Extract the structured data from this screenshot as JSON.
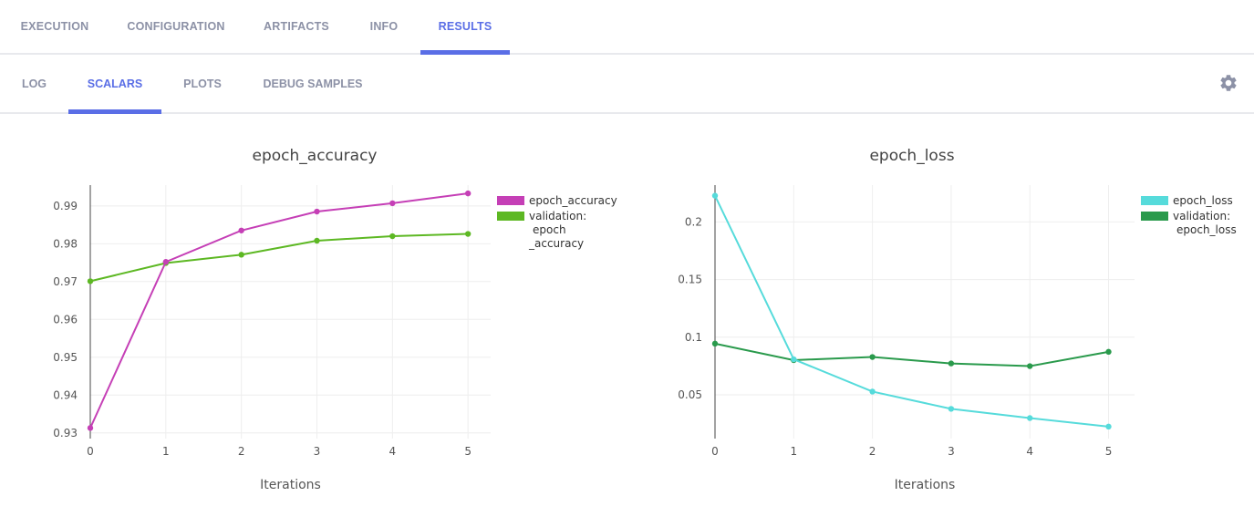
{
  "top_tabs": [
    {
      "label": "EXECUTION",
      "active": false
    },
    {
      "label": "CONFIGURATION",
      "active": false
    },
    {
      "label": "ARTIFACTS",
      "active": false
    },
    {
      "label": "INFO",
      "active": false
    },
    {
      "label": "RESULTS",
      "active": true
    }
  ],
  "sub_tabs": [
    {
      "label": "LOG",
      "active": false
    },
    {
      "label": "SCALARS",
      "active": true
    },
    {
      "label": "PLOTS",
      "active": false
    },
    {
      "label": "DEBUG SAMPLES",
      "active": false
    }
  ],
  "settings_icon": "gear-icon",
  "colors": {
    "accent": "#5a6ee6",
    "tab_inactive": "#8c91a6"
  },
  "chart_data": [
    {
      "type": "line",
      "title": "epoch_accuracy",
      "xlabel": "Iterations",
      "ylabel": "",
      "x": [
        0,
        1,
        2,
        3,
        4,
        5
      ],
      "xlim": [
        0,
        5.3
      ],
      "ylim": [
        0.9285,
        0.9955
      ],
      "yticks": [
        0.93,
        0.94,
        0.95,
        0.96,
        0.97,
        0.98,
        0.99
      ],
      "ytick_labels": [
        "0.93",
        "0.94",
        "0.95",
        "0.96",
        "0.97",
        "0.98",
        "0.99"
      ],
      "grid": true,
      "legend": "right",
      "series": [
        {
          "name": "epoch_accuracy",
          "legend_lines": [
            "epoch_accuracy"
          ],
          "color": "#c53fb6",
          "values": [
            0.9313,
            0.9752,
            0.9835,
            0.9885,
            0.9907,
            0.9933
          ]
        },
        {
          "name": "validation: epoch_accuracy",
          "legend_lines": [
            "validation:",
            "epoch",
            "_accuracy"
          ],
          "color": "#5db823",
          "values": [
            0.9701,
            0.9749,
            0.9771,
            0.9808,
            0.982,
            0.9826
          ]
        }
      ]
    },
    {
      "type": "line",
      "title": "epoch_loss",
      "xlabel": "Iterations",
      "ylabel": "",
      "x": [
        0,
        1,
        2,
        3,
        4,
        5
      ],
      "xlim": [
        0,
        5.33
      ],
      "ylim": [
        0.012,
        0.232
      ],
      "yticks": [
        0.05,
        0.1,
        0.15,
        0.2
      ],
      "ytick_labels": [
        "0.05",
        "0.1",
        "0.15",
        "0.2"
      ],
      "grid": true,
      "legend": "right",
      "series": [
        {
          "name": "epoch_loss",
          "legend_lines": [
            "epoch_loss"
          ],
          "color": "#56dbdb",
          "values": [
            0.2228,
            0.0808,
            0.0528,
            0.0378,
            0.0298,
            0.0224
          ]
        },
        {
          "name": "validation: epoch_loss",
          "legend_lines": [
            "validation:",
            "epoch_loss"
          ],
          "color": "#2a9a4c",
          "values": [
            0.0944,
            0.0801,
            0.0828,
            0.0772,
            0.0749,
            0.0873
          ]
        }
      ]
    }
  ]
}
